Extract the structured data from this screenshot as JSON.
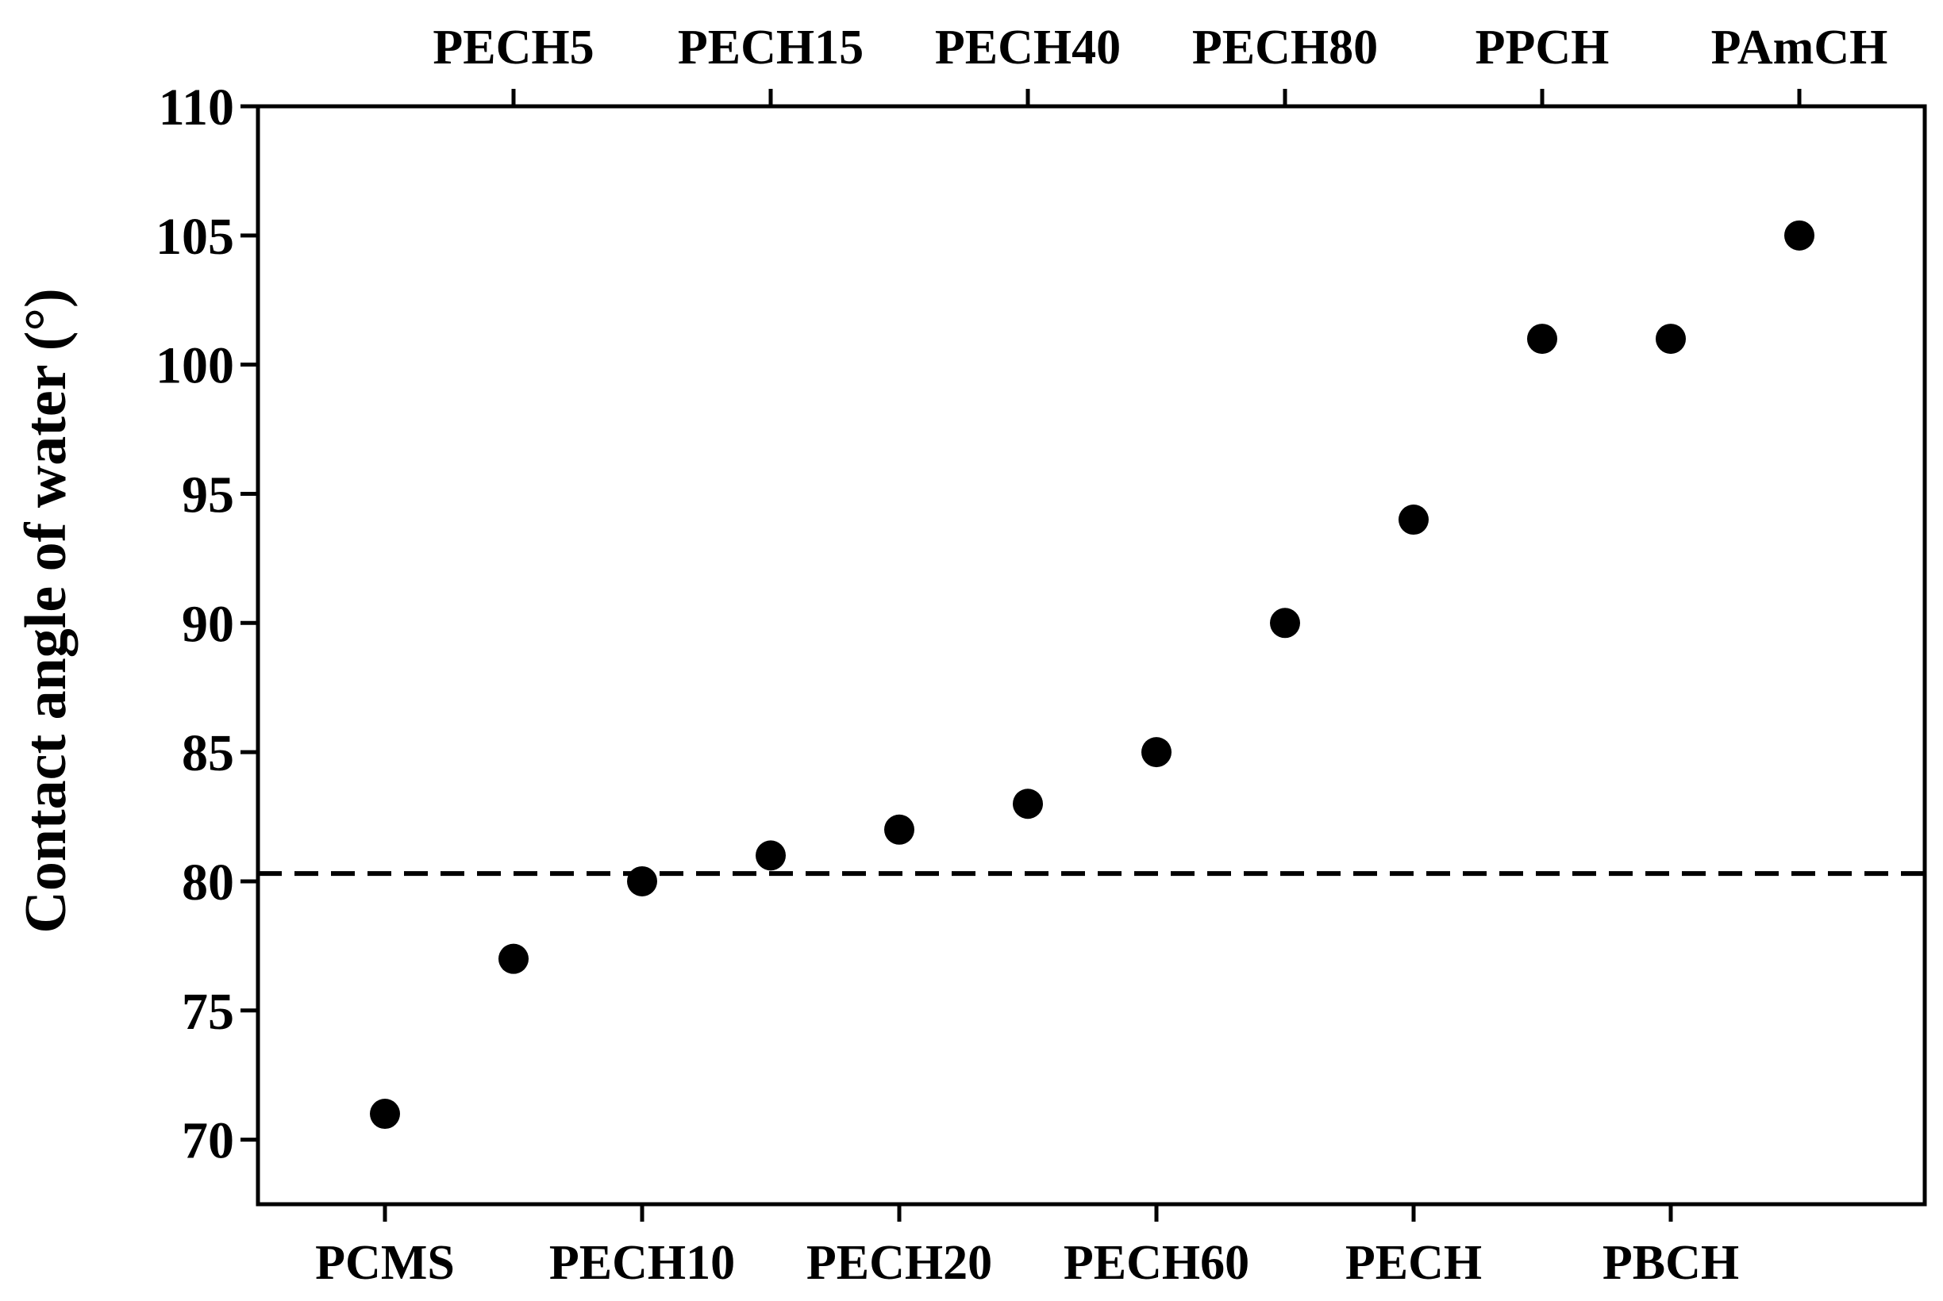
{
  "chart_data": {
    "type": "scatter",
    "title": "",
    "ylabel": "Contact angle of water (°)",
    "xlabel": "",
    "ylim": [
      67.5,
      110
    ],
    "yticks": [
      70,
      75,
      80,
      85,
      90,
      95,
      100,
      105,
      110
    ],
    "bottom_categories": [
      "PCMS",
      "PECH10",
      "PECH20",
      "PECH60",
      "PECH",
      "PBCH"
    ],
    "top_categories": [
      "PECH5",
      "PECH15",
      "PECH40",
      "PECH80",
      "PPCH",
      "PAmCH"
    ],
    "series": [
      {
        "x": [
          "PCMS",
          "PECH5",
          "PECH10",
          "PECH15",
          "PECH20",
          "PECH40",
          "PECH60",
          "PECH80",
          "PECH",
          "PPCH",
          "PBCH",
          "PAmCH"
        ],
        "values": [
          71,
          77,
          80,
          81,
          82,
          83,
          85,
          90,
          94,
          101,
          101,
          105
        ]
      }
    ],
    "reference_line": {
      "y": 80.3,
      "style": "dashed"
    },
    "grid": false,
    "legend": "none",
    "colors": {
      "marker": "#000000",
      "axis": "#000000",
      "reference_line": "#000000"
    }
  }
}
